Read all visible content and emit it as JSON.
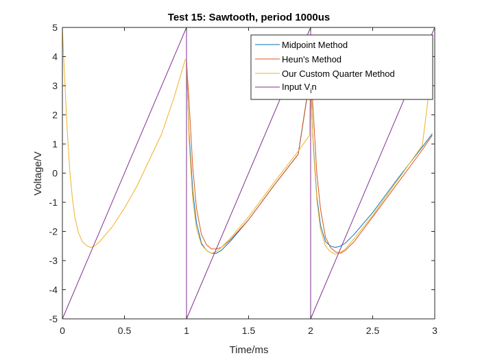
{
  "chart_data": {
    "type": "line",
    "title": "Test 15: Sawtooth, period 1000us",
    "xlabel": "Time/ms",
    "ylabel": "Voltage/V",
    "xlim": [
      0,
      3
    ],
    "ylim": [
      -5,
      5
    ],
    "xticks": [
      0,
      0.5,
      1,
      1.5,
      2,
      2.5,
      3
    ],
    "xtick_labels": [
      "0",
      "0.5",
      "1",
      "1.5",
      "2",
      "2.5",
      "3"
    ],
    "yticks": [
      5,
      4,
      3,
      2,
      1,
      0,
      -1,
      -2,
      -3,
      -4,
      -5
    ],
    "ytick_labels": [
      "5",
      "4",
      "3",
      "2",
      "1",
      "0",
      "-1",
      "-2",
      "-3",
      "-4",
      "-5"
    ],
    "grid": false,
    "legend_position": "top-right",
    "series": [
      {
        "name": "Midpoint Method",
        "color": "#0072BD",
        "x": [
          1.0,
          1.02,
          1.05,
          1.08,
          1.12,
          1.16,
          1.2,
          1.24,
          1.28,
          1.35,
          1.5,
          1.7,
          1.9,
          2.0,
          2.02,
          2.05,
          2.08,
          2.12,
          2.16,
          2.2,
          2.24,
          2.28,
          2.35,
          2.5,
          2.7,
          2.9,
          2.98
        ],
        "y": [
          3.8,
          1.4,
          -0.6,
          -1.7,
          -2.4,
          -2.65,
          -2.75,
          -2.75,
          -2.65,
          -2.35,
          -1.6,
          -0.45,
          0.65,
          3.4,
          1.1,
          -0.8,
          -1.8,
          -2.35,
          -2.5,
          -2.55,
          -2.5,
          -2.4,
          -2.1,
          -1.35,
          -0.2,
          0.9,
          1.35
        ]
      },
      {
        "name": "Heun's Method",
        "color": "#D95319",
        "x": [
          1.0,
          1.02,
          1.05,
          1.08,
          1.12,
          1.16,
          1.2,
          1.24,
          1.28,
          1.35,
          1.5,
          1.7,
          1.9,
          2.0,
          2.02,
          2.05,
          2.08,
          2.12,
          2.16,
          2.2,
          2.24,
          2.28,
          2.35,
          2.5,
          2.7,
          2.9,
          2.98
        ],
        "y": [
          3.85,
          2.5,
          0.2,
          -1.2,
          -2.1,
          -2.45,
          -2.6,
          -2.6,
          -2.55,
          -2.3,
          -1.6,
          -0.45,
          0.65,
          3.45,
          2.2,
          0.0,
          -1.25,
          -2.2,
          -2.55,
          -2.7,
          -2.75,
          -2.65,
          -2.35,
          -1.5,
          -0.35,
          0.8,
          1.3
        ]
      },
      {
        "name": "Our Custom Quarter Method",
        "color": "#EDB120",
        "x": [
          0.0,
          0.02,
          0.04,
          0.06,
          0.08,
          0.1,
          0.13,
          0.16,
          0.2,
          0.23,
          0.26,
          0.3,
          0.4,
          0.5,
          0.6,
          0.7,
          0.8,
          0.9,
          0.99,
          1.0,
          1.02,
          1.05,
          1.08,
          1.12,
          1.16,
          1.2,
          1.24,
          1.28,
          1.35,
          1.5,
          1.7,
          1.9,
          1.99,
          2.0,
          2.02,
          2.05,
          2.08,
          2.12,
          2.16,
          2.2,
          2.24,
          2.28,
          2.35,
          2.5,
          2.7,
          2.9,
          2.98
        ],
        "y": [
          4.95,
          3.1,
          1.4,
          0.05,
          -0.85,
          -1.5,
          -2.05,
          -2.35,
          -2.5,
          -2.55,
          -2.5,
          -2.35,
          -1.85,
          -1.2,
          -0.45,
          0.45,
          1.35,
          2.6,
          3.9,
          3.9,
          1.2,
          -0.9,
          -1.9,
          -2.45,
          -2.65,
          -2.75,
          -2.7,
          -2.55,
          -2.25,
          -1.5,
          -0.35,
          0.75,
          1.3,
          3.5,
          1.0,
          -0.9,
          -1.95,
          -2.5,
          -2.7,
          -2.78,
          -2.72,
          -2.6,
          -2.25,
          -1.45,
          -0.25,
          0.95,
          3.7
        ]
      },
      {
        "name": "Input V_in",
        "color": "#7E2F8E",
        "x": [
          0.0,
          1.0,
          1.0,
          2.0,
          2.0,
          3.0,
          3.0
        ],
        "y": [
          -5,
          5,
          -5,
          5,
          -5,
          5,
          -5
        ]
      }
    ]
  },
  "legend": {
    "items": [
      {
        "label": "Midpoint Method"
      },
      {
        "label": "Heun's Method"
      },
      {
        "label": "Our Custom Quarter Method"
      },
      {
        "label_main": "Input V",
        "label_sub": "i",
        "label_tail": "n"
      }
    ]
  }
}
